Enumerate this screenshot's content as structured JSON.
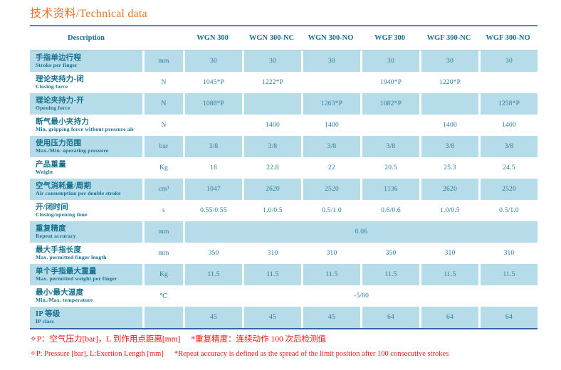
{
  "title": "技术资料/Technical data",
  "colors": {
    "title_orange": "#e8772a",
    "header_teal": "#15708f",
    "value_teal": "#2e7d9c",
    "row_shade_blue": "#b6dcea",
    "table_top_border": "#3f90b4",
    "table_bottom_border": "#2f66a3",
    "note_red": "#fb1414"
  },
  "table": {
    "description_header": "Description",
    "columns": [
      "WGN 300",
      "WGN 300-NC",
      "WGN 300-NO",
      "WGF 300",
      "WGF 300-NC",
      "WGF 300-NO"
    ],
    "rows": [
      {
        "zh": "手指单边行程",
        "en": "Stroke per finger",
        "unit": "mm",
        "values": [
          "30",
          "30",
          "30",
          "30",
          "30",
          "30"
        ]
      },
      {
        "zh": "理论夹持力-闭",
        "en": "Closing force",
        "unit": "N",
        "values": [
          "1045*P",
          "1222*P",
          "",
          "1040*P",
          "1220*P",
          ""
        ]
      },
      {
        "zh": "理论夹持力-开",
        "en": "Opening force",
        "unit": "N",
        "values": [
          "1088*P",
          "",
          "1263*P",
          "1082*P",
          "",
          "1258*P"
        ]
      },
      {
        "zh": "断气最小夹持力",
        "en": "Min. gripping force without pressure air",
        "unit": "N",
        "values": [
          "",
          "1400",
          "1400",
          "",
          "1400",
          "1400"
        ]
      },
      {
        "zh": "使用压力范围",
        "en": "Max./Min. operating pressure",
        "unit": "bar",
        "values": [
          "3/8",
          "3/8",
          "3/8",
          "3/8",
          "3/8",
          "3/8"
        ]
      },
      {
        "zh": "产品重量",
        "en": "Weight",
        "unit": "Kg",
        "values": [
          "18",
          "22.8",
          "22",
          "20.5",
          "25.3",
          "24.5"
        ]
      },
      {
        "zh": "空气消耗量/周期",
        "en": "Air consumption per double stroke",
        "unit": "cm³",
        "values": [
          "1047",
          "2620",
          "2520",
          "1136",
          "2620",
          "2520"
        ]
      },
      {
        "zh": "开/闭时间",
        "en": "Closing/opening time",
        "unit": "s",
        "values": [
          "0.55/0.55",
          "1.0/0.5",
          "0.5/1.0",
          "0.6/0.6",
          "1.0/0.5",
          "0.5/1.0"
        ]
      },
      {
        "zh": "重复精度",
        "en": "Repeat accuracy",
        "unit": "mm",
        "span": "0.06"
      },
      {
        "zh": "最大手指长度",
        "en": "Max. permitted finger length",
        "unit": "mm",
        "values": [
          "350",
          "310",
          "310",
          "350",
          "310",
          "310"
        ]
      },
      {
        "zh": "单个手指最大重量",
        "en": "Max. permitted weight per finger",
        "unit": "Kg",
        "values": [
          "11.5",
          "11.5",
          "11.5",
          "11.5",
          "11.5",
          "11.5"
        ]
      },
      {
        "zh": "最小/最大温度",
        "en": "Min./Max. temperature",
        "unit": "℃",
        "span": "-5/80"
      },
      {
        "zh": "IP 等级",
        "en": "IP class",
        "unit": "",
        "values": [
          "45",
          "45",
          "45",
          "64",
          "64",
          "64"
        ]
      }
    ]
  },
  "notes": {
    "zh_part1": "✧P：空气压力[bar]，L 到作用点距离[mm]",
    "zh_part2": "*重复精度：连续动作 100 次后检测值",
    "en_part1": "✧P: Pressure [bar], L:Exertion Length [mm]",
    "en_part2": "*Repeat accuracy is defined as the spread of the limit position after 100 consecutive strokes"
  }
}
